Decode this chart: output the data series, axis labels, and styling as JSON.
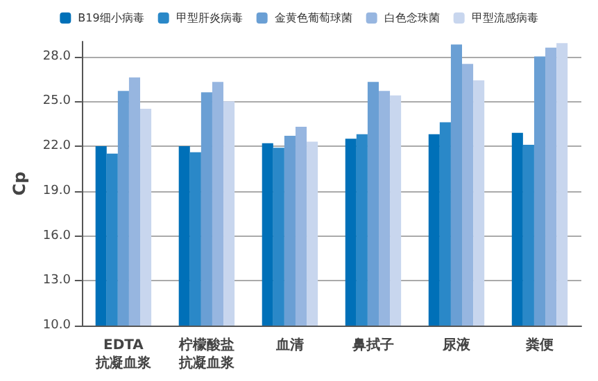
{
  "chart_data": {
    "type": "bar",
    "ylabel": "Cp",
    "categories": [
      "EDTA 抗凝血浆",
      "柠檬酸盐抗凝血浆",
      "血清",
      "鼻拭子",
      "尿液",
      "粪便"
    ],
    "series": [
      {
        "name": "B19细小病毒",
        "color": "#0070b8",
        "values": [
          22.0,
          22.0,
          22.2,
          22.5,
          22.8,
          22.9
        ]
      },
      {
        "name": "甲型肝炎病毒",
        "color": "#2a88c8",
        "values": [
          21.5,
          21.6,
          21.9,
          22.8,
          23.6,
          22.1
        ]
      },
      {
        "name": "金黄色葡萄球菌",
        "color": "#6a9fd4",
        "values": [
          25.7,
          25.6,
          22.7,
          26.3,
          28.8,
          28.0
        ]
      },
      {
        "name": "白色念珠菌",
        "color": "#97b6e0",
        "values": [
          26.6,
          26.3,
          23.3,
          25.7,
          27.5,
          28.6
        ]
      },
      {
        "name": "甲型流感病毒",
        "color": "#c8d6ee",
        "values": [
          24.5,
          25.0,
          22.3,
          25.4,
          26.4,
          28.9
        ]
      }
    ],
    "ylim": [
      10,
      29
    ],
    "yticks": [
      {
        "value": 10,
        "label": "10.0"
      },
      {
        "value": 13,
        "label": "13.0"
      },
      {
        "value": 16,
        "label": "16.0"
      },
      {
        "value": 19,
        "label": "19.0"
      },
      {
        "value": 22,
        "label": "22.0"
      },
      {
        "value": 25,
        "label": "25.0"
      },
      {
        "value": 28,
        "label": "28.0"
      }
    ],
    "grid": "y",
    "legend": "top"
  }
}
